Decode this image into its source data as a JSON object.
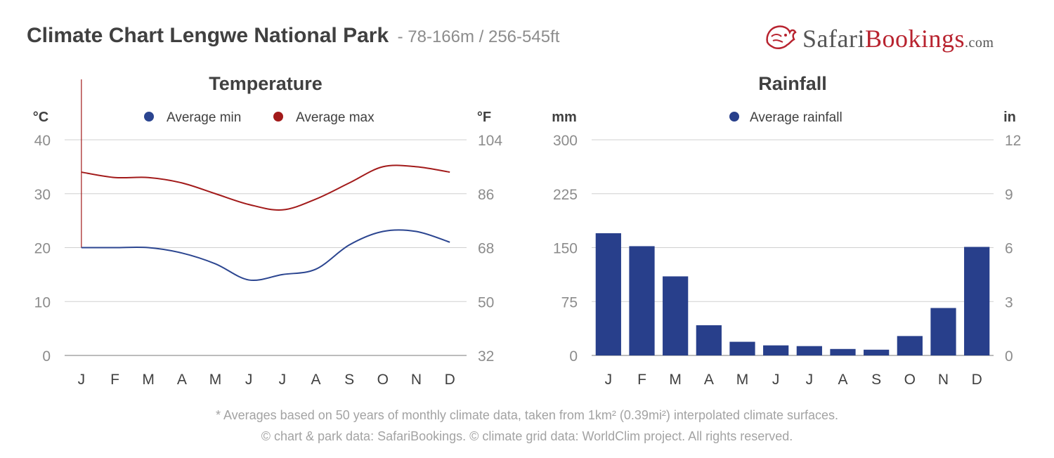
{
  "header": {
    "title": "Climate Chart Lengwe National Park",
    "subtitle": "- 78-166m / 256-545ft"
  },
  "logo": {
    "part1": "Safari",
    "part2": "Bookings",
    "part3": ".com"
  },
  "colors": {
    "min": "#2b4590",
    "max": "#a21a1a",
    "bar": "#283f8b",
    "grid": "#d0d0d0",
    "text": "#404040",
    "tick": "#8c8c8c"
  },
  "chart_data": [
    {
      "type": "line",
      "title": "Temperature",
      "left_unit": "°C",
      "right_unit": "°F",
      "categories": [
        "J",
        "F",
        "M",
        "A",
        "M",
        "J",
        "J",
        "A",
        "S",
        "O",
        "N",
        "D"
      ],
      "ylim": [
        0,
        40
      ],
      "yticks": [
        "0",
        "10",
        "20",
        "30",
        "40"
      ],
      "yticks_right": [
        "32",
        "50",
        "68",
        "86",
        "104"
      ],
      "grid": true,
      "legend_position": "top-center",
      "series": [
        {
          "name": "Average min",
          "color": "#2b4590",
          "values": [
            20,
            20,
            20,
            19,
            17,
            14,
            15,
            16,
            20.5,
            23,
            23,
            21
          ]
        },
        {
          "name": "Average max",
          "color": "#a21a1a",
          "values": [
            34,
            33,
            33,
            32,
            30,
            28,
            27,
            29,
            32,
            35,
            35,
            34
          ]
        }
      ]
    },
    {
      "type": "bar",
      "title": "Rainfall",
      "left_unit": "mm",
      "right_unit": "in",
      "categories": [
        "J",
        "F",
        "M",
        "A",
        "M",
        "J",
        "J",
        "A",
        "S",
        "O",
        "N",
        "D"
      ],
      "ylim": [
        0,
        300
      ],
      "yticks": [
        "0",
        "75",
        "150",
        "225",
        "300"
      ],
      "yticks_right": [
        "0",
        "3",
        "6",
        "9",
        "12"
      ],
      "grid": true,
      "legend_position": "top-center",
      "series": [
        {
          "name": "Average rainfall",
          "color": "#283f8b",
          "values": [
            170,
            152,
            110,
            42,
            19,
            14,
            13,
            9,
            8,
            27,
            66,
            151
          ]
        }
      ]
    }
  ],
  "footer": {
    "footnote": "* Averages based on 50 years of monthly climate data, taken from 1km² (0.39mi²) interpolated climate surfaces.",
    "credits": "© chart & park data: SafariBookings. © climate grid data: WorldClim project. All rights reserved."
  }
}
